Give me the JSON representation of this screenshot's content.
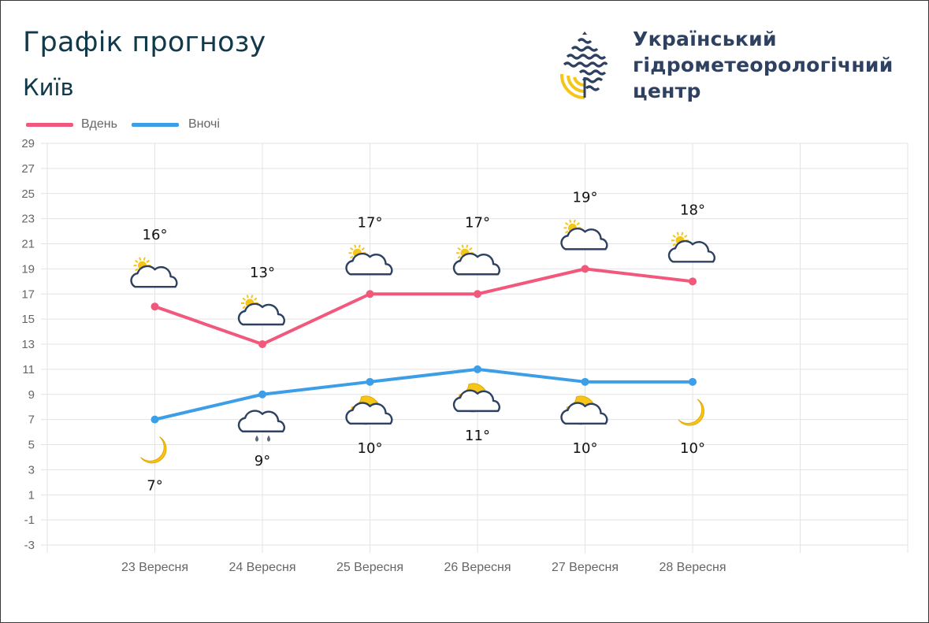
{
  "header": {
    "title": "Графік прогнозу",
    "city": "Київ"
  },
  "organization": {
    "name_lines": [
      "Український",
      "гідрометеорологічний",
      "центр"
    ]
  },
  "legend": [
    {
      "label": "Вдень",
      "color": "#f2587c"
    },
    {
      "label": "Вночі",
      "color": "#3b9ee6"
    }
  ],
  "chart_data": {
    "type": "line",
    "categories": [
      "23 Вересня",
      "24 Вересня",
      "25 Вересня",
      "26 Вересня",
      "27 Вересня",
      "28 Вересня"
    ],
    "series": [
      {
        "name": "Вдень",
        "color": "#f2587c",
        "values": [
          16,
          13,
          17,
          17,
          19,
          18
        ],
        "labels": [
          "16°",
          "13°",
          "17°",
          "17°",
          "19°",
          "18°"
        ],
        "icons": [
          "partly-cloudy-day-icon",
          "partly-cloudy-day-icon",
          "partly-cloudy-day-icon",
          "partly-cloudy-day-icon",
          "partly-cloudy-day-icon",
          "partly-cloudy-day-icon"
        ]
      },
      {
        "name": "Вночі",
        "color": "#3b9ee6",
        "values": [
          7,
          9,
          10,
          11,
          10,
          10
        ],
        "labels": [
          "7°",
          "9°",
          "10°",
          "11°",
          "10°",
          "10°"
        ],
        "icons": [
          "moon-icon",
          "rain-cloud-icon",
          "partly-cloudy-night-icon",
          "partly-cloudy-night-icon",
          "partly-cloudy-night-icon",
          "moon-icon"
        ]
      }
    ],
    "ylim": [
      -3,
      29
    ],
    "yticks": [
      29,
      27,
      25,
      23,
      21,
      19,
      17,
      15,
      13,
      11,
      9,
      7,
      5,
      3,
      1,
      -1,
      -3
    ],
    "grid": true,
    "legend_position": "top-left"
  }
}
